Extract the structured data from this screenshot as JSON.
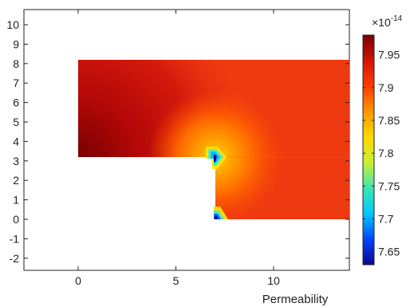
{
  "chart_data": {
    "type": "heatmap",
    "title": "",
    "xlabel": "Permeability",
    "ylabel": "",
    "x_ticks": [
      0,
      5,
      10
    ],
    "y_ticks": [
      10,
      9,
      8,
      7,
      6,
      5,
      4,
      3,
      2,
      1,
      0,
      -1,
      -2
    ],
    "y_tick_labels": [
      "10",
      "9",
      "8",
      "7",
      "6",
      "5",
      "4",
      "3",
      "2",
      "1",
      "0",
      "-1",
      "-2"
    ],
    "xlim": [
      -2.7,
      14
    ],
    "ylim": [
      -2.7,
      10.6
    ],
    "domain_regions": [
      {
        "x": [
          0,
          14
        ],
        "y": [
          3.1,
          8.1
        ]
      },
      {
        "x": [
          7,
          14
        ],
        "y": [
          0,
          3.1
        ]
      }
    ],
    "field": {
      "max_value_region": "left lower corner near (0, 3.2)",
      "min_value_points": [
        [
          7.1,
          3.1
        ],
        [
          7.1,
          0.2
        ]
      ],
      "typical_value": 7.93,
      "min_value": 7.63,
      "max_value": 7.98
    },
    "colorbar": {
      "exponent_label": "×10",
      "exponent": "-14",
      "ticks": [
        7.95,
        7.9,
        7.85,
        7.8,
        7.75,
        7.7,
        7.65
      ],
      "tick_labels": [
        "7.95",
        "7.9",
        "7.85",
        "7.8",
        "7.75",
        "7.7",
        "7.65"
      ],
      "range": [
        7.63,
        7.98
      ],
      "colormap": [
        "#0a0a8c",
        "#0044ff",
        "#00c8ff",
        "#3ce6b4",
        "#c8f032",
        "#ffd700",
        "#ff9600",
        "#ff3c00",
        "#d21400",
        "#780000"
      ]
    },
    "grid": false
  }
}
